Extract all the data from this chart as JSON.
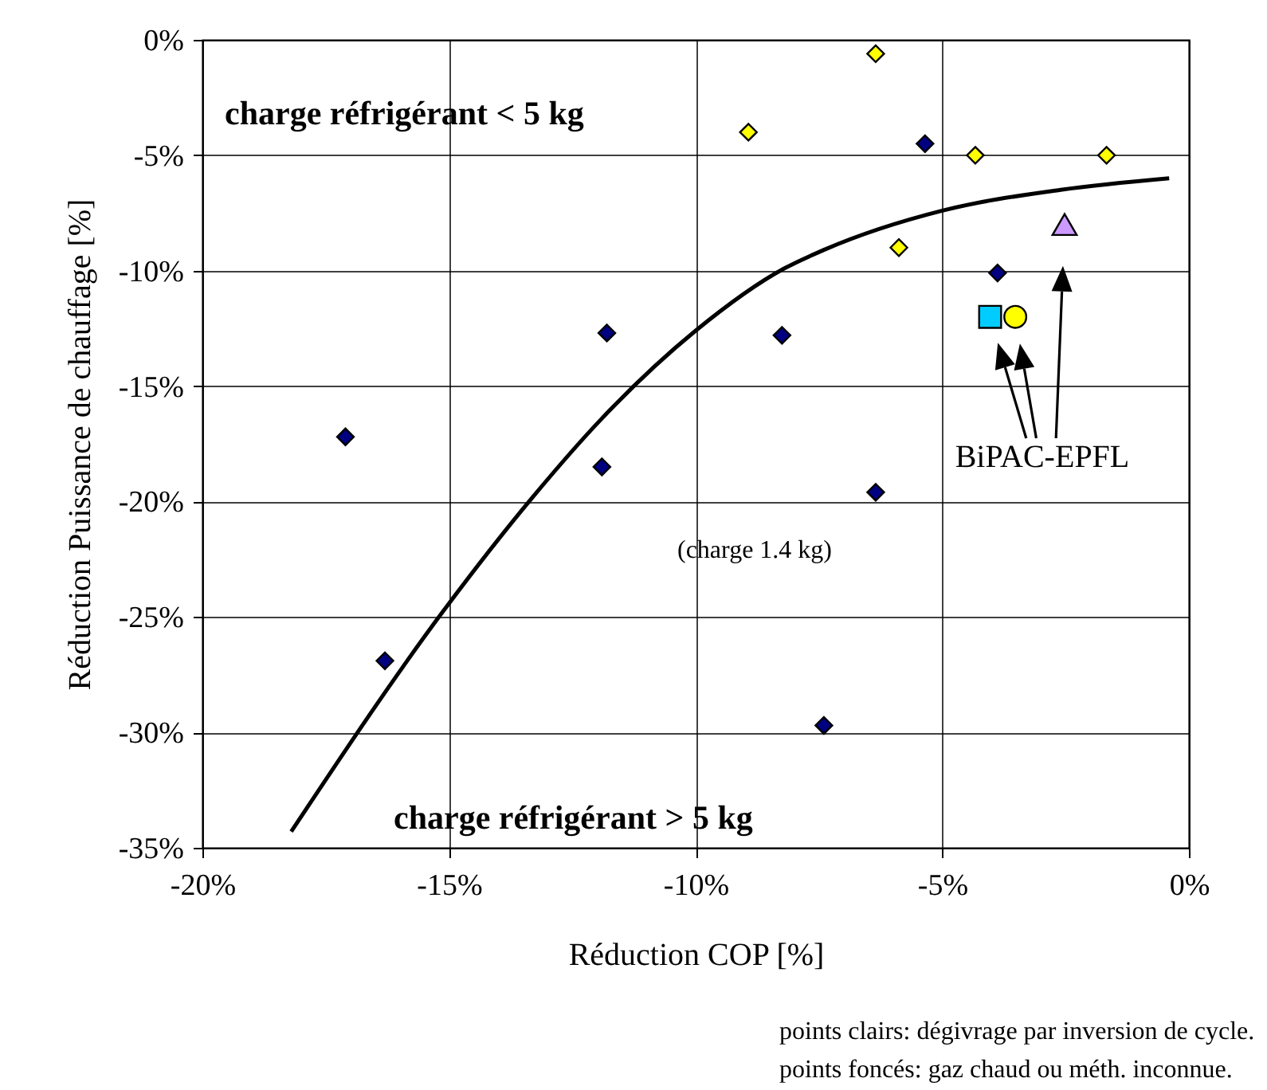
{
  "chart_data": {
    "type": "scatter",
    "xlabel": "Réduction COP [%]",
    "ylabel": "Réduction Puissance de chauffage [%]",
    "xlim": [
      -20,
      0
    ],
    "ylim": [
      -35,
      0
    ],
    "xticks": [
      {
        "value": -20,
        "label": "-20%"
      },
      {
        "value": -15,
        "label": "-15%"
      },
      {
        "value": -10,
        "label": "-10%"
      },
      {
        "value": -5,
        "label": "-5%"
      },
      {
        "value": 0,
        "label": "0%"
      }
    ],
    "yticks": [
      {
        "value": -35,
        "label": "-35%"
      },
      {
        "value": -30,
        "label": "-30%"
      },
      {
        "value": -25,
        "label": "-25%"
      },
      {
        "value": -20,
        "label": "-20%"
      },
      {
        "value": -15,
        "label": "-15%"
      },
      {
        "value": -10,
        "label": "-10%"
      },
      {
        "value": -5,
        "label": "-5%"
      },
      {
        "value": 0,
        "label": "0%"
      }
    ],
    "grid": true,
    "series": [
      {
        "type": "line",
        "color": "#000000",
        "marker": "none",
        "x": [
          -18.2,
          -15.1,
          -13.3,
          -11.9,
          -10.0,
          -8.2,
          -7.4,
          -5.0,
          -2.6,
          -0.4
        ],
        "values": [
          -34.3,
          -24.7,
          -19.8,
          -16.4,
          -12.6,
          -9.9,
          -9.1,
          -7.4,
          -6.5,
          -6.0
        ]
      },
      {
        "color": "#000080",
        "marker": "diamond",
        "x": [
          -17.1,
          -16.3,
          -11.8,
          -11.9,
          -5.35,
          -3.88,
          -8.25,
          -6.35,
          -7.4
        ],
        "values": [
          -17.2,
          -26.9,
          -12.7,
          -18.5,
          -4.5,
          -10.1,
          -12.8,
          -19.6,
          -29.7
        ]
      },
      {
        "color": "#ffff00",
        "marker": "diamond",
        "x": [
          -6.35,
          -8.93,
          -4.33,
          -1.67,
          -5.88
        ],
        "values": [
          -0.6,
          -4.0,
          -5.0,
          -5.0,
          -9.0
        ]
      },
      {
        "color": "#00ccff",
        "marker": "square",
        "x": [
          -4.03
        ],
        "values": [
          -12.0
        ]
      },
      {
        "color": "#ffff00",
        "marker": "circle",
        "x": [
          -3.52
        ],
        "values": [
          -12.0
        ]
      },
      {
        "color": "#cc99ff",
        "marker": "triangle",
        "x": [
          -2.52
        ],
        "values": [
          -8.0
        ]
      }
    ],
    "annotations": [
      "charge réfrigérant < 5 kg",
      "charge réfrigérant > 5 kg",
      "(charge 1.4 kg)",
      "BiPAC-EPFL",
      "points clairs: dégivrage par inversion de cycle.",
      "points foncés: gaz chaud ou méth. inconnue."
    ]
  }
}
